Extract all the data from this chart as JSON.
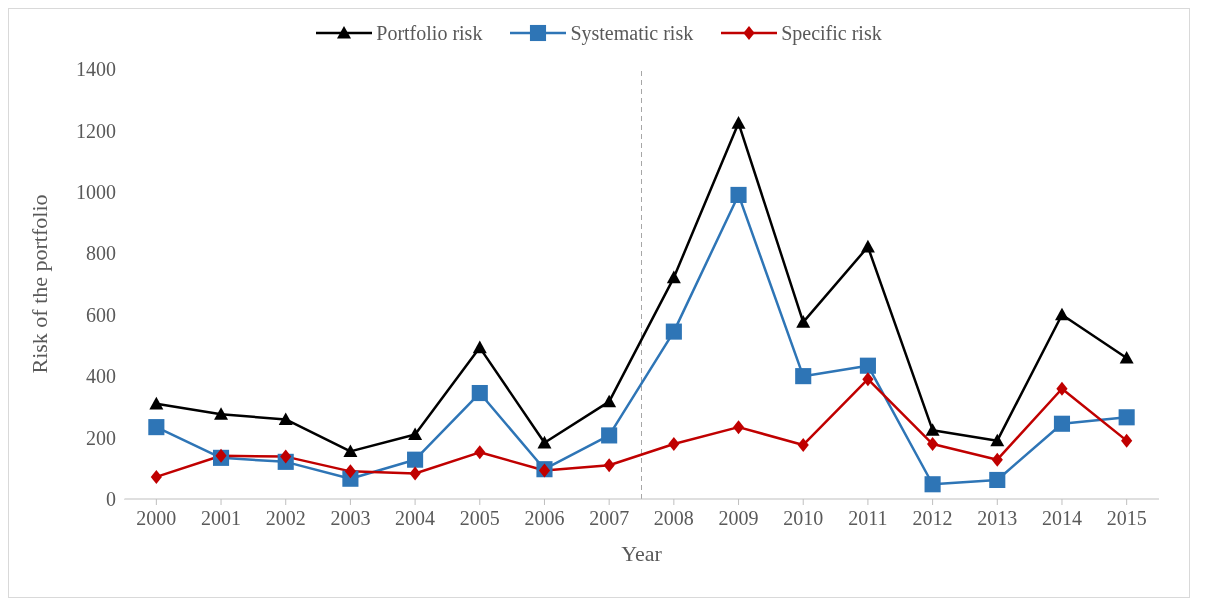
{
  "chart_data": {
    "type": "line",
    "xlabel": "Year",
    "ylabel": "Risk of the portfolio",
    "x": [
      2000,
      2001,
      2002,
      2003,
      2004,
      2005,
      2006,
      2007,
      2008,
      2009,
      2010,
      2011,
      2012,
      2013,
      2014,
      2015
    ],
    "xlim": [
      1999.5,
      2015.5
    ],
    "xticks": [
      2000,
      2001,
      2002,
      2003,
      2004,
      2005,
      2006,
      2007,
      2008,
      2009,
      2010,
      2011,
      2012,
      2013,
      2014,
      2015
    ],
    "ylim": [
      0,
      1400
    ],
    "yticks": [
      0,
      200,
      400,
      600,
      800,
      1000,
      1200,
      1400
    ],
    "grid": false,
    "legend": "top",
    "line_style": "solid",
    "ref_lines": [
      {
        "axis": "x",
        "value": 2007.5,
        "color": "#a6a6a6",
        "line_style": "dashed"
      }
    ],
    "series": [
      {
        "name": "Portfolio risk",
        "color": "#000000",
        "marker": "triangle",
        "values": [
          310,
          276,
          259,
          155,
          210,
          493,
          183,
          317,
          721,
          1224,
          576,
          821,
          224,
          190,
          600,
          459
        ]
      },
      {
        "name": "Systematic risk",
        "color": "#2e75b6",
        "marker": "square",
        "values": [
          234,
          134,
          121,
          66,
          128,
          345,
          97,
          207,
          545,
          990,
          400,
          434,
          48,
          62,
          245,
          266
        ]
      },
      {
        "name": "Specific risk",
        "color": "#c00000",
        "marker": "diamond",
        "values": [
          72,
          141,
          138,
          90,
          83,
          152,
          93,
          110,
          179,
          234,
          176,
          390,
          179,
          128,
          359,
          190
        ]
      }
    ]
  }
}
